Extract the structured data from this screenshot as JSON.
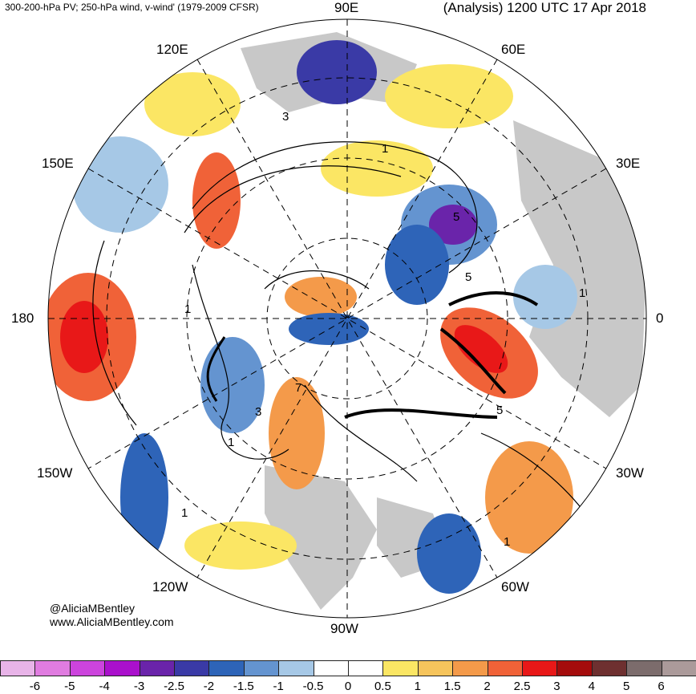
{
  "title_left": "300-200-hPa PV; 250-hPa wind, v-wind' (1979-2009 CFSR)",
  "title_right": "(Analysis) 1200 UTC 17 Apr 2018",
  "longitude_labels": {
    "lon_90E": "90E",
    "lon_60E": "60E",
    "lon_120E": "120E",
    "lon_30E": "30E",
    "lon_150E": "150E",
    "lon_0": "0",
    "lon_180": "180",
    "lon_150W": "150W",
    "lon_30W": "30W",
    "lon_120W": "120W",
    "lon_60W": "60W",
    "lon_90W": "90W"
  },
  "credit": {
    "handle": "@AliciaMBentley",
    "url": "www.AliciaMBentley.com"
  },
  "contour_labels": [
    "1",
    "3",
    "5",
    "7"
  ],
  "colorbar": {
    "colors": [
      "#e8b4e8",
      "#e07ce0",
      "#cc44dd",
      "#aa10cc",
      "#6a24aa",
      "#3a3aa6",
      "#2e64b8",
      "#6494d0",
      "#a6c8e6",
      "#ffffff",
      "#ffffff",
      "#fbe664",
      "#f6c45c",
      "#f49a4a",
      "#f06238",
      "#e81818",
      "#a40c0c",
      "#6e3030",
      "#7c6c6c",
      "#ab9a9a"
    ],
    "ticks": [
      "-6",
      "-5",
      "-4",
      "-3",
      "-2.5",
      "-2",
      "-1.5",
      "-1",
      "-0.5",
      "0",
      "0.5",
      "1",
      "1.5",
      "2",
      "2.5",
      "3",
      "4",
      "5",
      "6"
    ]
  }
}
